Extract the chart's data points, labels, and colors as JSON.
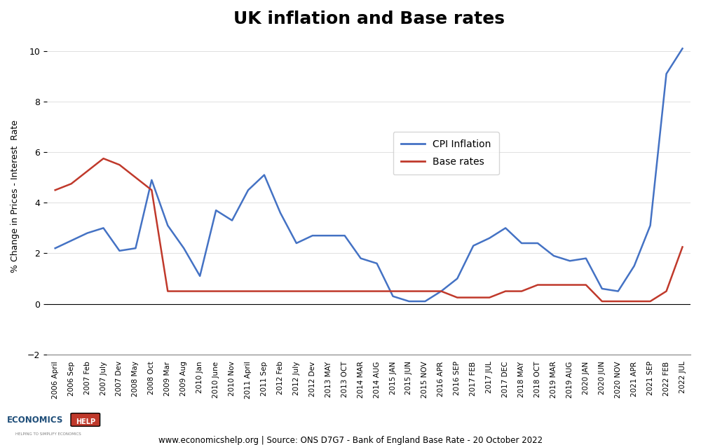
{
  "title": "UK inflation and Base rates",
  "ylabel": "% Change in Prices - Interest  Rate",
  "footer": "www.economicshelp.org | Source: ONS D7G7 - Bank of England Base Rate - 20 October 2022",
  "ylim": [
    -2,
    10.5
  ],
  "yticks": [
    -2,
    0,
    2,
    4,
    6,
    8,
    10
  ],
  "cpi_color": "#4472C4",
  "base_color": "#C0392B",
  "background_color": "#FFFFFF",
  "legend_cpi": "CPI Inflation",
  "legend_base": "Base rates",
  "x_labels": [
    "2006 April",
    "2006 Sep",
    "2007 Feb",
    "2007 July",
    "2007 Dev",
    "2008 May",
    "2008 Oct",
    "2009 Mar",
    "2009 Aug",
    "2010 Jan",
    "2010 June",
    "2010 Nov",
    "2011 April",
    "2011 Sep",
    "2012 Feb",
    "2012 July",
    "2012 Dev",
    "2013 MAY",
    "2013 OCT",
    "2014 MAR",
    "2014 AUG",
    "2015 JAN",
    "2015 JUN",
    "2015 NOV",
    "2016 APR",
    "2016 SEP",
    "2017 FEB",
    "2017 JUL",
    "2017 DEC",
    "2018 MAY",
    "2018 OCT",
    "2019 MAR",
    "2019 AUG",
    "2020 JAN",
    "2020 JUN",
    "2020 NOV",
    "2021 APR",
    "2021 SEP",
    "2022 FEB",
    "2022 JUL"
  ],
  "cpi_values": [
    2.2,
    2.5,
    2.8,
    3.0,
    2.1,
    2.2,
    4.9,
    3.1,
    2.2,
    1.1,
    3.7,
    3.3,
    4.5,
    5.1,
    3.6,
    2.4,
    2.7,
    2.7,
    2.7,
    1.8,
    1.6,
    0.3,
    0.1,
    0.1,
    0.5,
    1.0,
    2.3,
    2.6,
    3.0,
    2.4,
    2.4,
    1.9,
    1.7,
    1.8,
    0.6,
    0.5,
    1.5,
    3.1,
    9.1,
    10.1
  ],
  "base_values": [
    4.5,
    4.75,
    5.25,
    5.75,
    5.5,
    5.0,
    4.5,
    0.5,
    0.5,
    0.5,
    0.5,
    0.5,
    0.5,
    0.5,
    0.5,
    0.5,
    0.5,
    0.5,
    0.5,
    0.5,
    0.5,
    0.5,
    0.5,
    0.5,
    0.5,
    0.25,
    0.25,
    0.25,
    0.5,
    0.5,
    0.75,
    0.75,
    0.75,
    0.75,
    0.1,
    0.1,
    0.1,
    0.1,
    0.5,
    2.25
  ]
}
